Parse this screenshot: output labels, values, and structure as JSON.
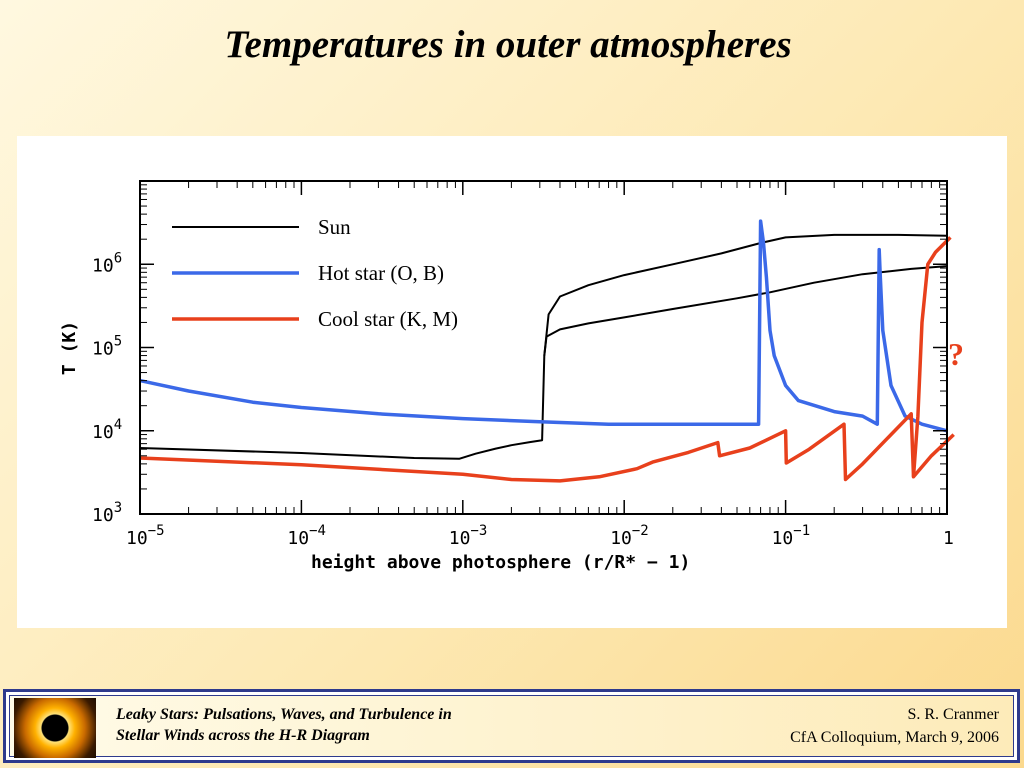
{
  "slide": {
    "title": "Temperatures in outer atmospheres",
    "question_mark": "?"
  },
  "footer": {
    "left_line1": "Leaky Stars:  Pulsations, Waves, and Turbulence in",
    "left_line2": "Stellar Winds across the H-R Diagram",
    "right_line1": "S. R. Cranmer",
    "right_line2": "CfA Colloquium,  March 9, 2006"
  },
  "chart_data": {
    "type": "line",
    "xscale": "log",
    "yscale": "log",
    "xlim": [
      1e-05,
      1
    ],
    "ylim": [
      1000,
      10000000
    ],
    "xlabel": "height above photosphere   (r/R* − 1)",
    "ylabel": "T (K)",
    "x_ticks": [
      {
        "value": 1e-05,
        "base": "10",
        "exp": "−5"
      },
      {
        "value": 0.0001,
        "base": "10",
        "exp": "−4"
      },
      {
        "value": 0.001,
        "base": "10",
        "exp": "−3"
      },
      {
        "value": 0.01,
        "base": "10",
        "exp": "−2"
      },
      {
        "value": 0.1,
        "base": "10",
        "exp": "−1"
      },
      {
        "value": 1,
        "base": "1",
        "exp": ""
      }
    ],
    "y_ticks": [
      {
        "value": 1000,
        "base": "10",
        "exp": "3"
      },
      {
        "value": 10000,
        "base": "10",
        "exp": "4"
      },
      {
        "value": 100000,
        "base": "10",
        "exp": "5"
      },
      {
        "value": 1000000,
        "base": "10",
        "exp": "6"
      }
    ],
    "legend_position": "top-left",
    "series": [
      {
        "name": "Sun",
        "color": "#000000",
        "width": 2,
        "curves": [
          [
            [
              1e-05,
              6200
            ],
            [
              0.0001,
              5400
            ],
            [
              0.0005,
              4700
            ],
            [
              0.00095,
              4600
            ],
            [
              0.0012,
              5300
            ],
            [
              0.0016,
              6100
            ],
            [
              0.002,
              6700
            ],
            [
              0.0026,
              7300
            ],
            [
              0.0031,
              7700
            ],
            [
              0.0032,
              80000
            ],
            [
              0.0033,
              135000
            ],
            [
              0.004,
              165000
            ],
            [
              0.006,
              195000
            ],
            [
              0.01,
              230000
            ],
            [
              0.02,
              290000
            ],
            [
              0.05,
              390000
            ],
            [
              0.08,
              460000
            ],
            [
              0.15,
              600000
            ],
            [
              0.3,
              760000
            ],
            [
              0.6,
              880000
            ],
            [
              1,
              950000
            ]
          ],
          [
            [
              0.0032,
              80000
            ],
            [
              0.0034,
              250000
            ],
            [
              0.004,
              410000
            ],
            [
              0.006,
              560000
            ],
            [
              0.01,
              740000
            ],
            [
              0.02,
              1000000
            ],
            [
              0.04,
              1350000
            ],
            [
              0.07,
              1800000
            ],
            [
              0.1,
              2100000
            ],
            [
              0.2,
              2250000
            ],
            [
              0.5,
              2250000
            ],
            [
              1,
              2200000
            ]
          ]
        ]
      },
      {
        "name": "Hot star (O, B)",
        "color": "#3b69e8",
        "width": 3.5,
        "curves": [
          [
            [
              1e-05,
              40000
            ],
            [
              2e-05,
              30000
            ],
            [
              5e-05,
              22000
            ],
            [
              0.0001,
              19000
            ],
            [
              0.0003,
              16000
            ],
            [
              0.001,
              14000
            ],
            [
              0.003,
              12800
            ],
            [
              0.008,
              12000
            ],
            [
              0.02,
              12000
            ],
            [
              0.05,
              12000
            ],
            [
              0.068,
              12000
            ],
            [
              0.07,
              3300000
            ],
            [
              0.073,
              1800000
            ],
            [
              0.076,
              700000
            ],
            [
              0.08,
              160000
            ],
            [
              0.085,
              80000
            ],
            [
              0.1,
              35000
            ],
            [
              0.12,
              23000
            ],
            [
              0.2,
              17000
            ],
            [
              0.3,
              15000
            ],
            [
              0.37,
              12000
            ],
            [
              0.38,
              1500000
            ],
            [
              0.385,
              800000
            ],
            [
              0.4,
              160000
            ],
            [
              0.45,
              35000
            ],
            [
              0.55,
              15000
            ],
            [
              0.7,
              12000
            ],
            [
              1,
              10000
            ]
          ]
        ]
      },
      {
        "name": "Cool star (K, M)",
        "color": "#e8401c",
        "width": 3.5,
        "curves": [
          [
            [
              1e-05,
              4700
            ],
            [
              0.0001,
              3900
            ],
            [
              0.001,
              3000
            ],
            [
              0.002,
              2600
            ],
            [
              0.004,
              2500
            ],
            [
              0.007,
              2800
            ],
            [
              0.012,
              3500
            ],
            [
              0.015,
              4200
            ],
            [
              0.025,
              5500
            ],
            [
              0.038,
              7200
            ],
            [
              0.039,
              5000
            ],
            [
              0.06,
              6200
            ],
            [
              0.1,
              10000
            ],
            [
              0.101,
              4100
            ],
            [
              0.14,
              6000
            ],
            [
              0.23,
              12000
            ],
            [
              0.235,
              2600
            ],
            [
              0.3,
              4000
            ],
            [
              0.6,
              16000
            ],
            [
              0.62,
              2800
            ],
            [
              0.8,
              5000
            ],
            [
              1.1,
              9000
            ]
          ],
          [
            [
              0.62,
              2800
            ],
            [
              0.66,
              15000
            ],
            [
              0.7,
              200000
            ],
            [
              0.76,
              1000000
            ],
            [
              0.85,
              1400000
            ],
            [
              1.05,
              2100000
            ]
          ]
        ]
      }
    ]
  }
}
